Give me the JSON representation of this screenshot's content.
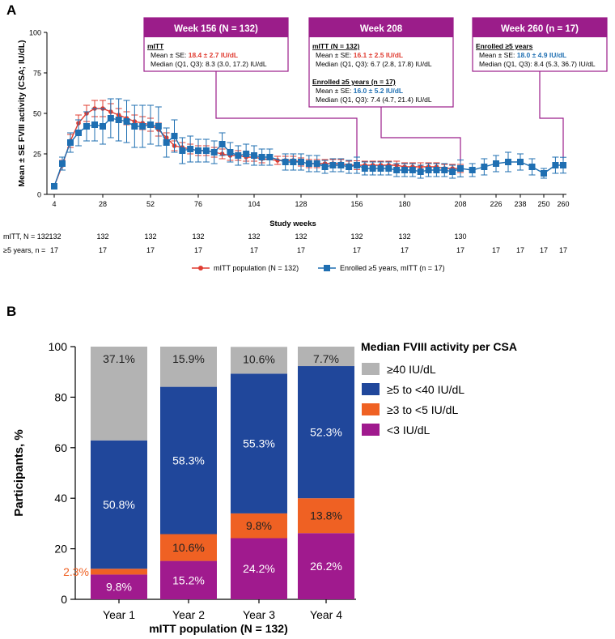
{
  "colors": {
    "magenta": "#9b1d8a",
    "red": "#e03c31",
    "blue": "#1f6fb2",
    "blue_bar": "#20479b",
    "orange": "#ef6123",
    "grey": "#b3b3b3",
    "purple": "#a01a8e"
  },
  "panel_a": {
    "label": "A",
    "n_rows": {
      "mitt": {
        "label": "mITT, N = 132",
        "cells": [
          [
            "28",
            "132"
          ],
          [
            "52",
            "132"
          ],
          [
            "76",
            "132"
          ],
          [
            "104",
            "132"
          ],
          [
            "128",
            "132"
          ],
          [
            "156",
            "132"
          ],
          [
            "180",
            "132"
          ],
          [
            "208",
            "130"
          ]
        ]
      },
      "five": {
        "label": "≥5 years, n =",
        "cells": [
          [
            "4",
            "17"
          ],
          [
            "28",
            "17"
          ],
          [
            "52",
            "17"
          ],
          [
            "76",
            "17"
          ],
          [
            "104",
            "17"
          ],
          [
            "128",
            "17"
          ],
          [
            "156",
            "17"
          ],
          [
            "180",
            "17"
          ],
          [
            "208",
            "17"
          ],
          [
            "226",
            "17"
          ],
          [
            "238",
            "17"
          ],
          [
            "250",
            "17"
          ],
          [
            "260",
            "17"
          ]
        ]
      }
    },
    "mitt_first_value": "132",
    "callouts": {
      "w156": {
        "header": "Week 156 (N = 132)",
        "group": "mITT",
        "mean_label": "Mean ± SE: ",
        "mean_value": "18.4 ± 2.7 IU/dL",
        "median": "Median (Q1, Q3): 8.3 (3.0, 17.2) IU/dL"
      },
      "w208": {
        "header": "Week 208",
        "group1": "mITT (N = 132)",
        "mean1_label": "Mean ± SE: ",
        "mean1_value": "16.1 ± 2.5 IU/dL",
        "median1": "Median (Q1, Q3): 6.7 (2.8, 17.8) IU/dL",
        "group2": "Enrolled ≥5 years (n = 17)",
        "mean2_label": "Mean ± SE: ",
        "mean2_value": "16.0 ± 5.2 IU/dL",
        "median2": "Median (Q1, Q3): 7.4 (4.7, 21.4) IU/dL"
      },
      "w260": {
        "header": "Week 260 (n = 17)",
        "group": "Enrolled ≥5 years",
        "mean_label": "Mean ± SE: ",
        "mean_value": "18.0 ± 4.9 IU/dL",
        "median": "Median (Q1, Q3): 8.4 (5.3, 36.7) IU/dL"
      }
    },
    "legend": {
      "mitt": "mITT population (N = 132)",
      "five": "Enrolled ≥5 years, mITT (n = 17)"
    }
  },
  "chart_data": [
    {
      "type": "line",
      "title": "",
      "xlabel": "Study weeks",
      "ylabel": "Mean ± SE FVIII activity (CSA; IU/dL)",
      "xticks": [
        4,
        28,
        52,
        76,
        104,
        128,
        156,
        180,
        208,
        226,
        238,
        250,
        260
      ],
      "xlim": [
        0,
        262
      ],
      "ylim": [
        0,
        100
      ],
      "yticks": [
        0,
        25,
        50,
        75,
        100
      ],
      "series": [
        {
          "name": "mITT population (N = 132)",
          "x": [
            4,
            8,
            12,
            16,
            20,
            24,
            28,
            32,
            36,
            40,
            44,
            48,
            52,
            56,
            60,
            64,
            68,
            72,
            76,
            80,
            84,
            88,
            92,
            96,
            100,
            104,
            108,
            116,
            120,
            124,
            128,
            132,
            136,
            140,
            144,
            148,
            152,
            156,
            160,
            164,
            168,
            172,
            176,
            180,
            184,
            188,
            192,
            196,
            200,
            204,
            208
          ],
          "y": [
            5,
            18,
            33,
            44,
            50,
            53,
            53,
            51,
            49,
            47,
            45,
            44,
            43,
            40,
            35,
            30,
            29,
            28,
            27,
            27,
            26,
            25,
            24,
            24,
            23,
            23,
            22,
            21,
            21,
            21,
            20,
            19,
            19,
            19,
            19,
            19,
            18,
            18,
            18,
            18,
            18,
            18,
            18,
            17,
            17,
            17,
            17,
            17,
            16,
            16,
            16
          ],
          "se": [
            1,
            3,
            4,
            5,
            5,
            5,
            5,
            5,
            4,
            4,
            4,
            4,
            4,
            4,
            3,
            3,
            3,
            3,
            3,
            3,
            3,
            3,
            3,
            3,
            2.5,
            2.5,
            2.5,
            2.5,
            2.5,
            2.5,
            2.5,
            2.5,
            2.5,
            2.5,
            2.5,
            2.5,
            2.5,
            2.7,
            2.5,
            2.5,
            2.5,
            2.5,
            2.5,
            2.5,
            2.5,
            2.5,
            2.5,
            2.5,
            2.5,
            2.5,
            2.5
          ]
        },
        {
          "name": "Enrolled ≥5 years, mITT (n = 17)",
          "x": [
            4,
            8,
            12,
            16,
            20,
            24,
            28,
            32,
            36,
            40,
            44,
            48,
            52,
            56,
            60,
            64,
            68,
            72,
            76,
            80,
            84,
            88,
            92,
            96,
            100,
            104,
            108,
            112,
            120,
            124,
            128,
            132,
            136,
            140,
            144,
            148,
            152,
            156,
            160,
            164,
            168,
            172,
            176,
            180,
            184,
            188,
            192,
            196,
            200,
            204,
            208,
            214,
            220,
            226,
            232,
            238,
            244,
            250,
            256,
            260
          ],
          "y": [
            5,
            19,
            32,
            38,
            42,
            43,
            42,
            47,
            46,
            45,
            42,
            42,
            43,
            42,
            32,
            36,
            27,
            28,
            27,
            27,
            26,
            31,
            26,
            24,
            25,
            24,
            23,
            23,
            20,
            20,
            20,
            19,
            19,
            17,
            18,
            18,
            17,
            18,
            16,
            16,
            16,
            16,
            15,
            15,
            15,
            14,
            15,
            15,
            15,
            14,
            16,
            15,
            17,
            19,
            20,
            20,
            17,
            13,
            18,
            18
          ],
          "se": [
            1,
            4,
            6,
            8,
            9,
            10,
            11,
            12,
            13,
            13,
            13,
            13,
            12,
            12,
            9,
            10,
            8,
            8,
            7,
            7,
            7,
            7,
            6,
            6,
            6,
            6,
            5,
            5,
            5,
            5,
            5,
            5,
            5,
            4,
            4,
            4,
            4,
            5,
            4,
            4,
            4,
            4,
            4,
            4,
            4,
            4,
            4,
            4,
            4,
            4,
            5.2,
            4,
            5,
            5,
            6,
            5,
            5,
            3,
            5,
            4.9
          ]
        }
      ]
    },
    {
      "type": "bar",
      "stacked": true,
      "title": "",
      "xlabel": "mITT population (N = 132)",
      "ylabel": "Participants, %",
      "ylim": [
        0,
        100
      ],
      "yticks": [
        0,
        20,
        40,
        60,
        80,
        100
      ],
      "categories": [
        "Year 1",
        "Year 2",
        "Year 3",
        "Year 4"
      ],
      "legend_title": "Median FVIII activity per CSA",
      "series": [
        {
          "name": "<3 IU/dL",
          "values": [
            9.8,
            15.2,
            24.2,
            26.2
          ],
          "labels": [
            "9.8%",
            "15.2%",
            "24.2%",
            "26.2%"
          ]
        },
        {
          "name": "≥3 to <5 IU/dL",
          "values": [
            2.3,
            10.6,
            9.8,
            13.8
          ],
          "labels": [
            "2.3%",
            "10.6%",
            "9.8%",
            "13.8%"
          ]
        },
        {
          "name": "≥5 to <40 IU/dL",
          "values": [
            50.8,
            58.3,
            55.3,
            52.3
          ],
          "labels": [
            "50.8%",
            "58.3%",
            "55.3%",
            "52.3%"
          ]
        },
        {
          "name": "≥40 IU/dL",
          "values": [
            37.1,
            15.9,
            10.6,
            7.7
          ],
          "labels": [
            "37.1%",
            "15.9%",
            "10.6%",
            "7.7%"
          ]
        }
      ],
      "legend_order": [
        "≥40 IU/dL",
        "≥5 to <40 IU/dL",
        "≥3 to <5 IU/dL",
        "<3 IU/dL"
      ]
    }
  ],
  "panel_b": {
    "label": "B"
  }
}
